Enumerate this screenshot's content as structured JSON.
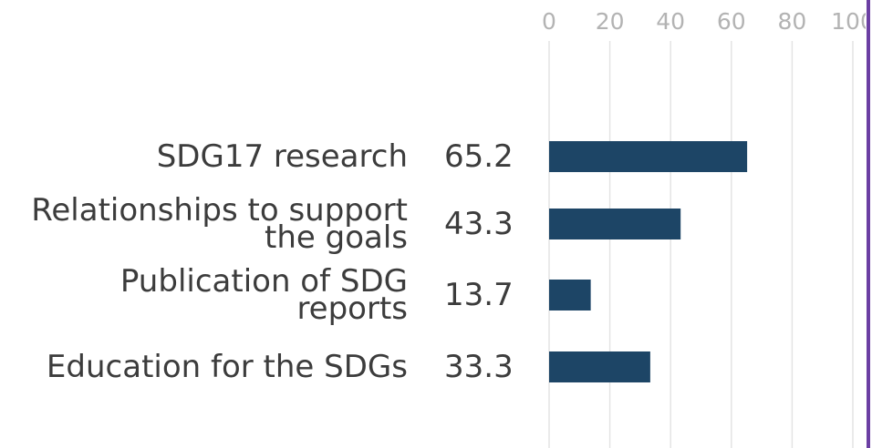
{
  "chart_data": {
    "type": "bar",
    "orientation": "horizontal",
    "categories": [
      "SDG17 research",
      "Relationships to support the goals",
      "Publication of SDG reports",
      "Education for the SDGs"
    ],
    "values": [
      65.2,
      43.3,
      13.7,
      33.3
    ],
    "color": "#1d4566",
    "xlim": [
      0,
      100
    ],
    "xticks": [
      0,
      20,
      40,
      60,
      80,
      100
    ],
    "grid": true
  }
}
